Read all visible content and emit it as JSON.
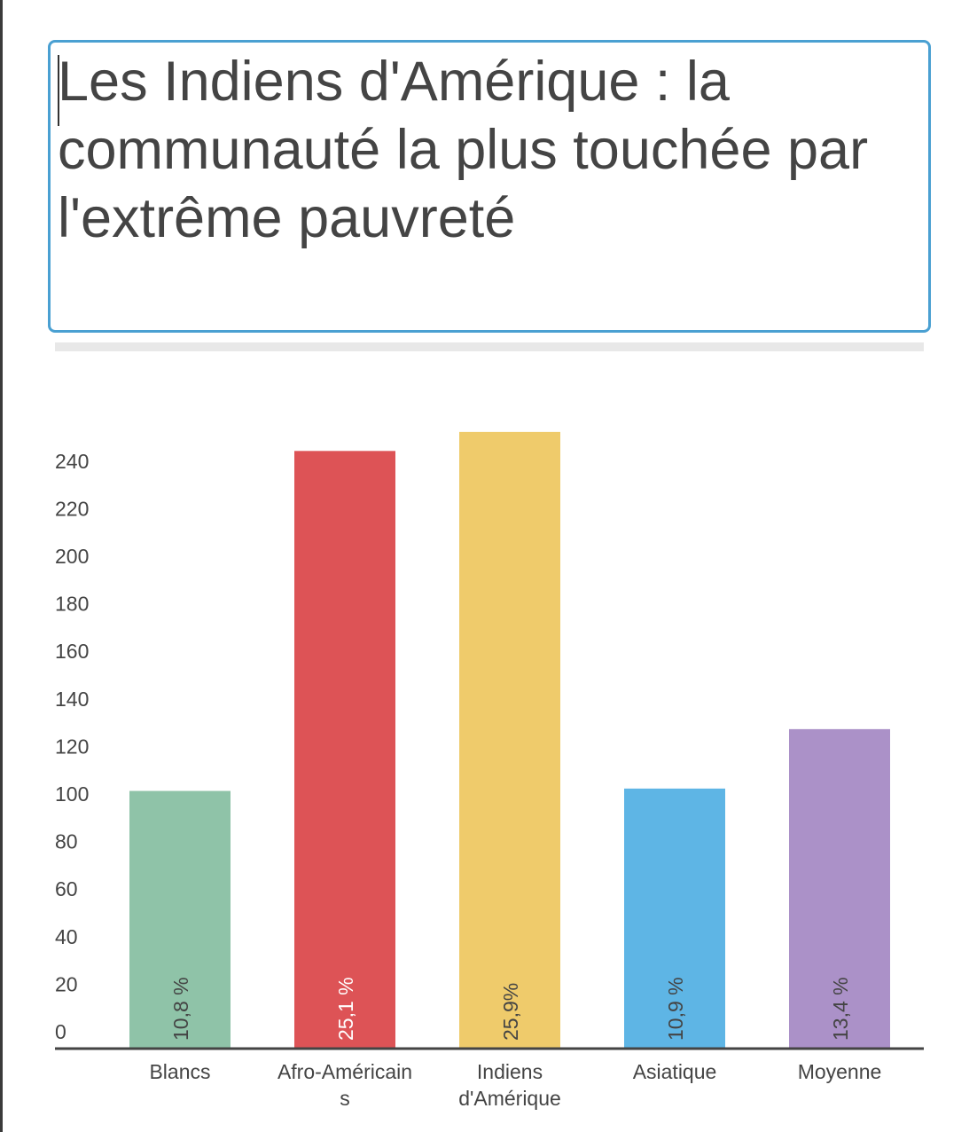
{
  "title": "Les Indiens d'Amérique : la communauté la plus touchée par l'extrême pauvreté",
  "chart_data": {
    "type": "bar",
    "title": "Les Indiens d'Amérique : la communauté la plus touchée par l'extrême pauvreté",
    "categories": [
      "Blancs",
      "Afro-Américains",
      "Indiens d'Amérique",
      "Asiatique",
      "Moyenne"
    ],
    "category_lines": [
      [
        "Blancs"
      ],
      [
        "Afro-Américain",
        "s"
      ],
      [
        "Indiens",
        "d'Amérique"
      ],
      [
        "Asiatique"
      ],
      [
        "Moyenne"
      ]
    ],
    "values": [
      108,
      251,
      259,
      109,
      134
    ],
    "data_labels": [
      "10,8 %",
      "25,1 %",
      "25,9%",
      "10,9 %",
      "13,4 %"
    ],
    "colors": [
      "#8fc3a8",
      "#dd5356",
      "#efcb6b",
      "#5eb5e5",
      "#ab91c8"
    ],
    "label_colors": [
      "#444444",
      "#ffffff",
      "#444444",
      "#444444",
      "#444444"
    ],
    "yticks": [
      0,
      20,
      40,
      60,
      80,
      100,
      120,
      140,
      160,
      180,
      200,
      220,
      240
    ],
    "ylim": [
      0,
      260
    ],
    "xlabel": "",
    "ylabel": "",
    "grid": false
  }
}
